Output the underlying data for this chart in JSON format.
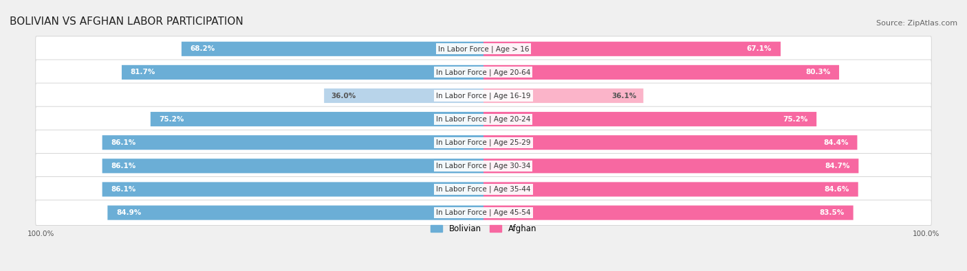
{
  "title": "BOLIVIAN VS AFGHAN LABOR PARTICIPATION",
  "source": "Source: ZipAtlas.com",
  "categories": [
    "In Labor Force | Age > 16",
    "In Labor Force | Age 20-64",
    "In Labor Force | Age 16-19",
    "In Labor Force | Age 20-24",
    "In Labor Force | Age 25-29",
    "In Labor Force | Age 30-34",
    "In Labor Force | Age 35-44",
    "In Labor Force | Age 45-54"
  ],
  "bolivian": [
    68.2,
    81.7,
    36.0,
    75.2,
    86.1,
    86.1,
    86.1,
    84.9
  ],
  "afghan": [
    67.1,
    80.3,
    36.1,
    75.2,
    84.4,
    84.7,
    84.6,
    83.5
  ],
  "bolivian_color": "#6baed6",
  "bolivian_light_color": "#b8d4ea",
  "afghan_color": "#f768a1",
  "afghan_light_color": "#fbb4c9",
  "background_color": "#f0f0f0",
  "row_bg_color": "#ffffff",
  "title_fontsize": 11,
  "source_fontsize": 8,
  "label_fontsize": 7.5,
  "value_fontsize": 7.5,
  "legend_fontsize": 8.5,
  "axis_label": "100.0%",
  "max_val": 100,
  "light_rows": [
    2
  ]
}
